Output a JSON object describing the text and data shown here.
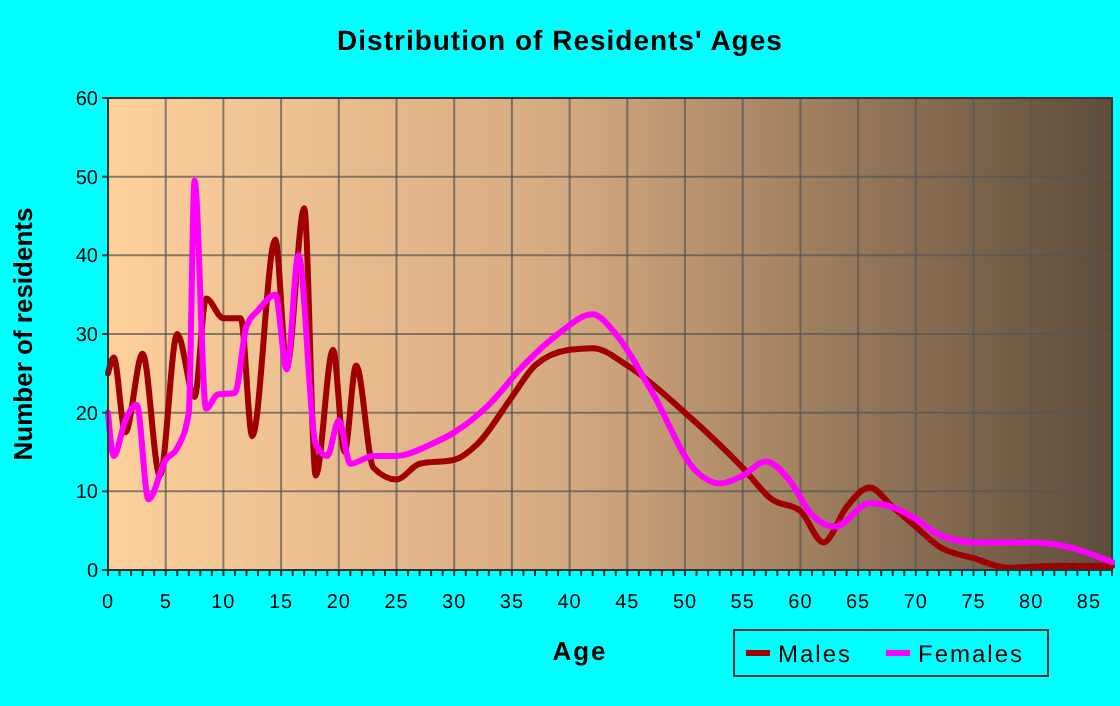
{
  "chart_data": {
    "type": "line",
    "title": "Distribution of Residents' Ages",
    "xlabel": "Age",
    "ylabel": "Number of residents",
    "xlim": [
      0,
      87
    ],
    "xticks": [
      0,
      5,
      10,
      15,
      20,
      25,
      30,
      35,
      40,
      45,
      50,
      55,
      60,
      65,
      70,
      75,
      80,
      85
    ],
    "ylim": [
      0,
      60
    ],
    "yticks": [
      0,
      10,
      20,
      30,
      40,
      50,
      60
    ],
    "grid": true,
    "legend": "bottom right",
    "marker": "none",
    "line_style": "solid",
    "series": [
      {
        "name": "Males",
        "color": "#a00000",
        "x": [
          0,
          0.5,
          1.5,
          3,
          4.5,
          6,
          7.5,
          8.5,
          10,
          11.5,
          12.5,
          14.5,
          15.5,
          17,
          18,
          19.5,
          20.5,
          21.5,
          23,
          25,
          27,
          30,
          32,
          35,
          37,
          40,
          42,
          45,
          50,
          55,
          57.5,
          60,
          62,
          64,
          66,
          68,
          70,
          72,
          75,
          78,
          82,
          87
        ],
        "values": [
          25,
          27,
          17.5,
          27.5,
          12,
          30,
          22,
          34.5,
          32,
          32,
          17,
          42,
          26,
          46,
          12,
          28,
          15,
          26,
          13,
          11.5,
          13.5,
          14,
          16,
          22,
          26,
          28,
          28.2,
          26,
          20,
          13,
          9,
          7.5,
          3.5,
          8,
          10.5,
          8,
          5.5,
          3,
          1.5,
          0.3,
          0.5,
          0.5
        ]
      },
      {
        "name": "Females",
        "color": "#ff00ff",
        "x": [
          0,
          0.5,
          1.5,
          2.5,
          3.5,
          5,
          6,
          7,
          7.5,
          8.5,
          9.5,
          11,
          12,
          13,
          14.5,
          15.5,
          16.5,
          18,
          19,
          20,
          21,
          23,
          25,
          28,
          30,
          33,
          36,
          39,
          42,
          44,
          47,
          51,
          53,
          55,
          57,
          59,
          61,
          63,
          66,
          68,
          70,
          72,
          75,
          80,
          83,
          87
        ],
        "values": [
          20,
          14.5,
          19,
          21,
          9,
          14,
          15.5,
          20,
          49.5,
          20.5,
          22.3,
          22.5,
          31,
          33,
          35,
          25.5,
          40,
          16,
          14.5,
          19,
          13.5,
          14.5,
          14.5,
          16,
          17.5,
          21,
          26,
          30,
          32.5,
          30,
          23,
          12.5,
          11,
          12,
          13.8,
          11.5,
          7,
          5.5,
          8.5,
          8,
          6.5,
          4.5,
          3.5,
          3.5,
          3,
          1
        ]
      }
    ]
  }
}
